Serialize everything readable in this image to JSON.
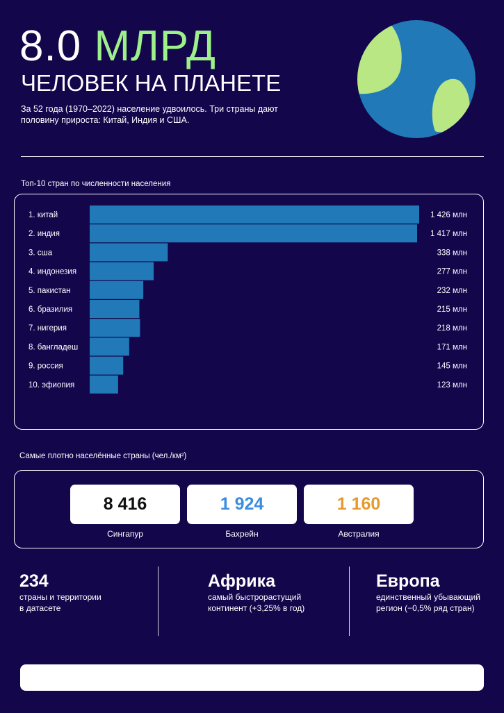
{
  "header": {
    "number": "8.0",
    "unit": "МЛРД",
    "subtitle": "ЧЕЛОВЕК НА ПЛАНЕТЕ",
    "description": "За 52 года (1970–2022) население удвоилось. Три страны дают половину прироста: Китай, Индия и США."
  },
  "globe": {
    "ocean_color": "#2179b8",
    "land_color": "#b9e784"
  },
  "top10": {
    "title": "Топ-10 стран по численности населения",
    "bar_color": "#2179b8"
  },
  "chart_data": {
    "type": "bar",
    "orientation": "horizontal",
    "categories": [
      "1. китай",
      "2. индия",
      "3. сша",
      "4. индонезия",
      "5. пакистан",
      "6. бразилия",
      "7. нигерия",
      "8. бангладеш",
      "9. россия",
      "10. эфиопия"
    ],
    "values": [
      1426,
      1417,
      338,
      277,
      232,
      215,
      218,
      171,
      145,
      123
    ],
    "value_labels": [
      "1 426 млн",
      "1 417 млн",
      "338 млн",
      "277 млн",
      "232 млн",
      "215 млн",
      "218 млн",
      "171 млн",
      "145 млн",
      "123 млн"
    ],
    "xlim": [
      0,
      1426
    ],
    "grid": false,
    "legend": "none"
  },
  "density": {
    "title": "Самые плотно населённые страны (чел./км²)",
    "items": [
      {
        "value": "8 416",
        "country": "Сингапур",
        "color": "#111111"
      },
      {
        "value": "1 924",
        "country": "Бахрейн",
        "color": "#3c8de0"
      },
      {
        "value": "1 160",
        "country": "Австралия",
        "color": "#e59a2e"
      }
    ]
  },
  "facts": [
    {
      "big": "234",
      "small": "страны и территории\nв датасете"
    },
    {
      "big": "Африка",
      "small": "самый   быстрорастущий\nконтинент (+3,25% в год)"
    },
    {
      "big": "Европа",
      "small": "единственный убывающий\nрегион (−0,5% ряд стран)"
    }
  ]
}
